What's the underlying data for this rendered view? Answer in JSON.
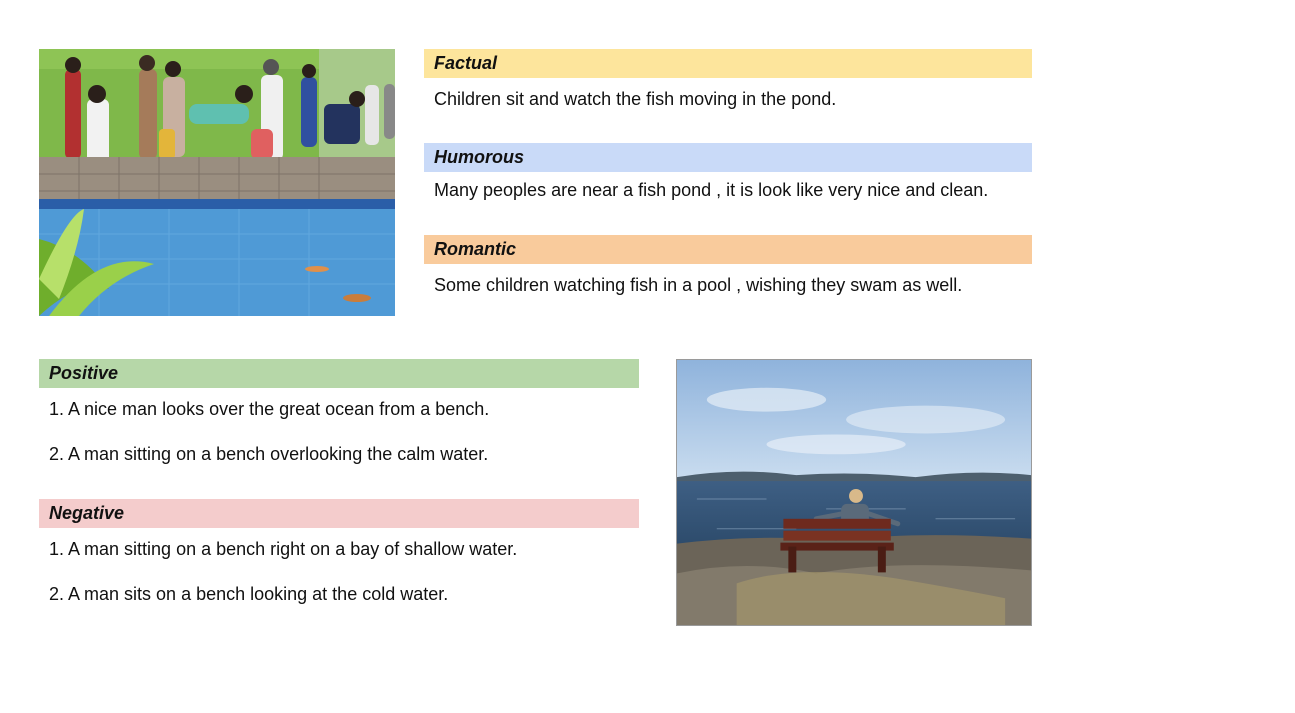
{
  "top_section": {
    "labels": {
      "factual": "Factual",
      "humorous": "Humorous",
      "romantic": "Romantic"
    },
    "captions": {
      "factual": "Children sit and watch the fish moving in the pond.",
      "humorous": "Many peoples are near a fish pond , it is look like very nice and clean.",
      "romantic": "Some children watching fish in a pool , wishing they swam as well."
    },
    "colors": {
      "factual": "#fde59c",
      "humorous": "#c9daf8",
      "romantic": "#f9cb9c"
    }
  },
  "bottom_section": {
    "labels": {
      "positive": "Positive",
      "negative": "Negative"
    },
    "positive_captions": [
      "1. A nice man looks over the great ocean from a bench.",
      "2. A man sitting on a bench overlooking the calm water."
    ],
    "negative_captions": [
      "1. A man sitting on a bench right on a bay of shallow water.",
      "2. A man sits on a bench looking at the cold water."
    ],
    "colors": {
      "positive": "#b6d7a8",
      "negative": "#f4cccc"
    }
  }
}
